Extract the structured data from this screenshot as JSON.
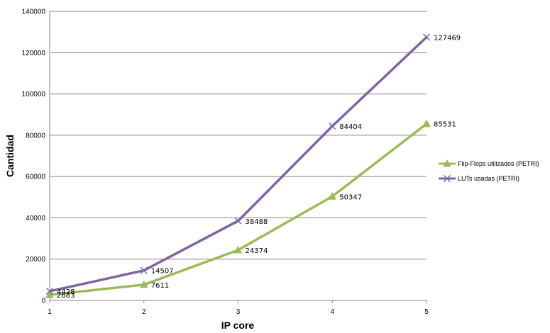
{
  "chart_data": {
    "type": "line",
    "title": "",
    "xlabel": "IP core",
    "ylabel": "Cantidad",
    "categories": [
      "1",
      "2",
      "3",
      "4",
      "5"
    ],
    "ylim": [
      0,
      140000
    ],
    "y_ticks": [
      "0",
      "20000",
      "40000",
      "60000",
      "80000",
      "100000",
      "120000",
      "140000"
    ],
    "grid": "horizontal",
    "legend_position": "right",
    "series": [
      {
        "name": "Flip-Flops utilizados (PETRI)",
        "color": "#9bbb59",
        "marker": "triangle",
        "values": [
          2683,
          7611,
          24374,
          50347,
          85531
        ],
        "labels": [
          "2683",
          "7611",
          "24374",
          "50347",
          "85531"
        ]
      },
      {
        "name": "LUTs usadas (PETRI)",
        "color": "#8064a2",
        "marker": "x",
        "values": [
          4428,
          14507,
          38488,
          84404,
          127469
        ],
        "labels": [
          "4428",
          "14507",
          "38488",
          "84404",
          "127469"
        ]
      }
    ]
  }
}
